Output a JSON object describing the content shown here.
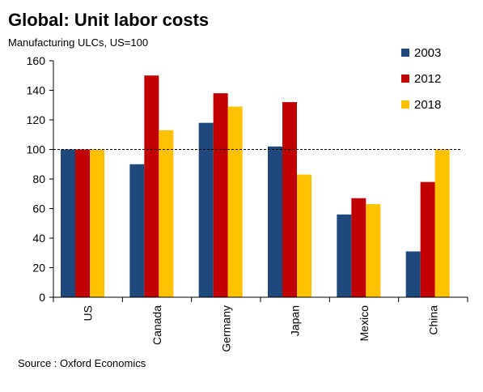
{
  "title": "Global: Unit labor costs",
  "subtitle": "Manufacturing ULCs, US=100",
  "source": "Source : Oxford Economics",
  "colors": {
    "2003": "#1f497d",
    "2012": "#c00000",
    "2018": "#ffc000"
  },
  "chart_data": {
    "type": "bar",
    "title": "Global: Unit labor costs",
    "subtitle": "Manufacturing ULCs, US=100",
    "categories": [
      "US",
      "Canada",
      "Germany",
      "Japan",
      "Mexico",
      "China"
    ],
    "series": [
      {
        "name": "2003",
        "values": [
          100,
          90,
          118,
          102,
          56,
          31
        ]
      },
      {
        "name": "2012",
        "values": [
          100,
          150,
          138,
          132,
          67,
          78
        ]
      },
      {
        "name": "2018",
        "values": [
          100,
          113,
          129,
          83,
          63,
          100
        ]
      }
    ],
    "ylim": [
      0,
      160
    ],
    "yticks": [
      0,
      20,
      40,
      60,
      80,
      100,
      120,
      140,
      160
    ],
    "reference_line": {
      "y": 100,
      "style": "dashed"
    },
    "legend_position": "right",
    "grid": false
  }
}
